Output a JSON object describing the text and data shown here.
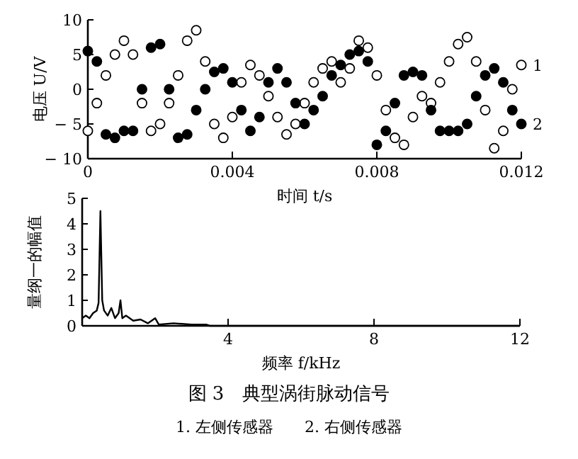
{
  "chart_data": [
    {
      "type": "scatter",
      "xlabel": "时间 t/s",
      "ylabel": "电压 U/V",
      "xlim": [
        0,
        0.012
      ],
      "ylim": [
        -10,
        10
      ],
      "xticks": [
        0,
        0.004,
        0.008,
        0.012
      ],
      "yticks": [
        -10,
        -5,
        0,
        5,
        10
      ],
      "marker": "circle",
      "grid": false,
      "legend": false,
      "x": [
        0,
        0.00025,
        0.0005,
        0.00075,
        0.001,
        0.00125,
        0.0015,
        0.00175,
        0.002,
        0.00225,
        0.0025,
        0.00275,
        0.003,
        0.00325,
        0.0035,
        0.00375,
        0.004,
        0.00425,
        0.0045,
        0.00475,
        0.005,
        0.00525,
        0.0055,
        0.00575,
        0.006,
        0.00625,
        0.0065,
        0.00675,
        0.007,
        0.00725,
        0.0075,
        0.00775,
        0.008,
        0.00825,
        0.0085,
        0.00875,
        0.009,
        0.00925,
        0.0095,
        0.00975,
        0.01,
        0.01025,
        0.0105,
        0.01075,
        0.011,
        0.01125,
        0.0115,
        0.01175,
        0.012
      ],
      "series": [
        {
          "name": "1",
          "color": "#ffffff",
          "values": [
            -6,
            -2,
            2,
            5,
            7,
            5,
            -2,
            -6,
            -5,
            -2,
            2,
            7,
            8.5,
            4,
            -5,
            -7,
            -4,
            1,
            3.5,
            2,
            -1,
            -4,
            -6.5,
            -5,
            -2,
            1,
            3,
            4,
            1,
            3,
            7,
            6,
            2,
            -3,
            -7,
            -8,
            -4,
            -1,
            -2,
            1,
            4,
            6.5,
            7.5,
            4,
            -3,
            -8.5,
            -6,
            0,
            3.5
          ]
        },
        {
          "name": "2",
          "color": "#000000",
          "values": [
            5.5,
            4,
            -6.5,
            -7,
            -6,
            -6,
            0,
            6,
            6.5,
            0,
            -7,
            -6.5,
            -3,
            0,
            2.5,
            3,
            1,
            -3,
            -6,
            -4,
            1,
            3,
            1,
            -2,
            -5,
            -3,
            -1,
            2,
            3.5,
            5,
            5.5,
            4,
            -8,
            -6,
            -2,
            2,
            2.5,
            2,
            -3,
            -6,
            -6,
            -6,
            -5,
            -1,
            2,
            3,
            1,
            -3,
            -5
          ]
        }
      ]
    },
    {
      "type": "line",
      "xlabel": "频率 f/kHz",
      "ylabel": "量纲一的幅值",
      "xlim": [
        0,
        12
      ],
      "ylim": [
        0,
        5
      ],
      "xticks": [
        4,
        8,
        12
      ],
      "yticks": [
        0,
        1,
        2,
        3,
        4,
        5
      ],
      "grid": false,
      "line_style": "solid",
      "x": [
        0,
        0.1,
        0.2,
        0.3,
        0.4,
        0.45,
        0.5,
        0.55,
        0.6,
        0.7,
        0.8,
        0.9,
        1.0,
        1.05,
        1.1,
        1.2,
        1.4,
        1.6,
        1.8,
        2.0,
        2.1,
        2.5,
        3.0,
        3.4,
        3.5,
        12
      ],
      "series": [
        {
          "color": "#000000",
          "values": [
            0.3,
            0.4,
            0.3,
            0.5,
            0.6,
            0.9,
            4.5,
            1.0,
            0.6,
            0.4,
            0.7,
            0.3,
            0.5,
            1.0,
            0.3,
            0.4,
            0.2,
            0.25,
            0.1,
            0.3,
            0.05,
            0.1,
            0.05,
            0.05,
            0,
            0
          ]
        }
      ],
      "annotations": [
        "图 3　典型涡街脉动信号",
        "1. 左侧传感器　　2. 右侧传感器"
      ]
    }
  ]
}
